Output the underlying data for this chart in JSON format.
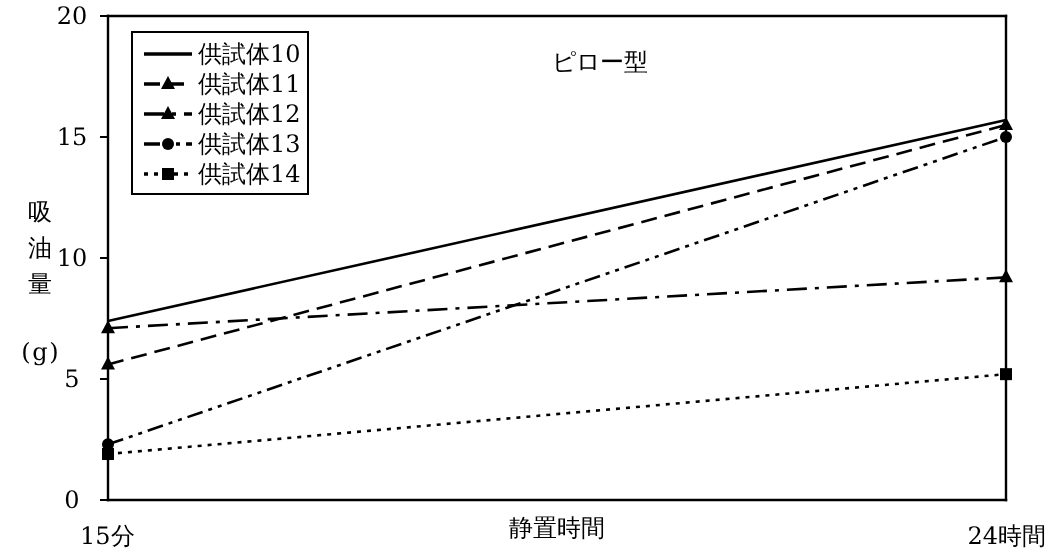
{
  "chart_data": {
    "type": "line",
    "title": "ピロー型",
    "xlabel": "静置時間",
    "ylabel": "吸油量 (g)",
    "categories": [
      "15分",
      "24時間"
    ],
    "series": [
      {
        "name": "供試体10",
        "color": "#000000",
        "values": [
          7.4,
          15.7
        ],
        "line_style": "solid",
        "marker": "none"
      },
      {
        "name": "供試体11",
        "color": "#000000",
        "values": [
          5.6,
          15.5
        ],
        "line_style": "dashed",
        "marker": "triangle"
      },
      {
        "name": "供試体12",
        "color": "#000000",
        "values": [
          7.1,
          9.2
        ],
        "line_style": "dashed",
        "marker": "triangle"
      },
      {
        "name": "供試体13",
        "color": "#000000",
        "values": [
          2.3,
          15.0
        ],
        "line_style": "dashed",
        "marker": "circle"
      },
      {
        "name": "供試体14",
        "color": "#000000",
        "values": [
          1.9,
          5.2
        ],
        "line_style": "dotted",
        "marker": "square"
      }
    ],
    "ylim": [
      0,
      20
    ],
    "yticks": [
      0,
      5,
      10,
      15,
      20
    ],
    "legend": "top left"
  }
}
